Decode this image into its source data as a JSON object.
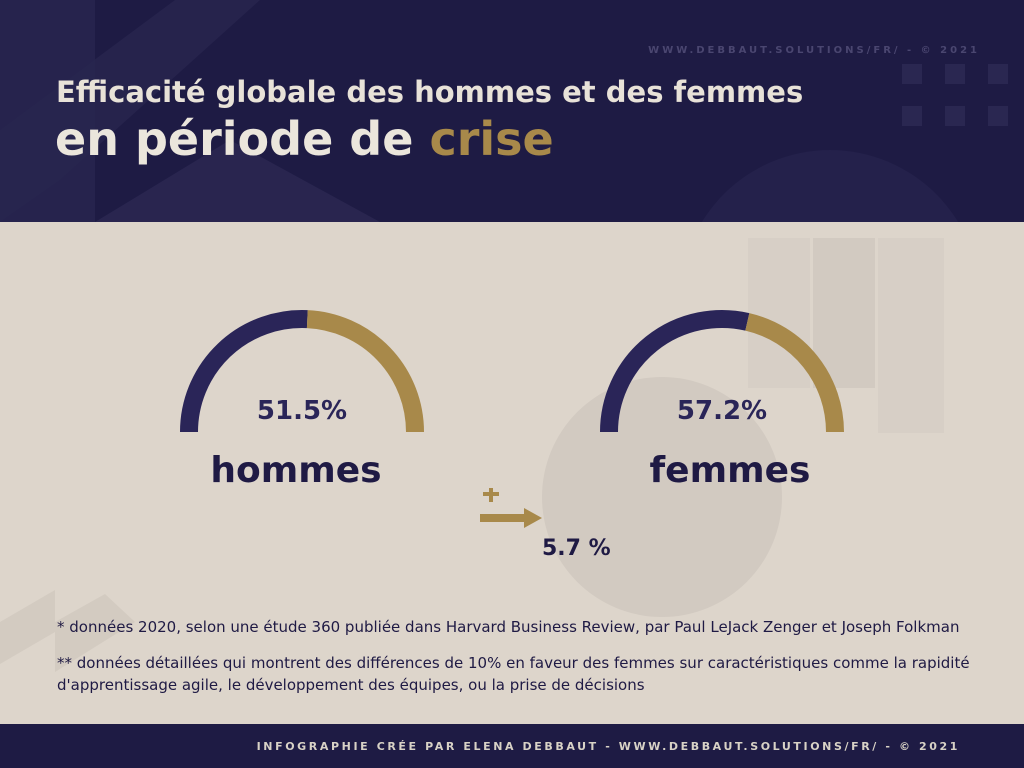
{
  "header": {
    "site_top": "WWW.DEBBAUT.SOLUTIONS/FR/ - © 2021",
    "title_line1": "Efficacité globale des hommes et des femmes",
    "title_line2_prefix": "en période de ",
    "title_line2_accent": "crise"
  },
  "colors": {
    "navy": "#2a2558",
    "gold": "#a8894a",
    "background": "#ddd5cb",
    "header_bg": "#1e1b44"
  },
  "chart_data": {
    "type": "gauge",
    "title": "",
    "series": [
      {
        "label": "hommes",
        "value": 51.5,
        "value_label": "51.5%"
      },
      {
        "label": "femmes",
        "value": 57.2,
        "value_label": "57.2%"
      }
    ],
    "range": [
      0,
      100
    ],
    "difference": {
      "sign": "+",
      "label": "5.7 %",
      "value": 5.7
    }
  },
  "notes": [
    "* données 2020, selon une étude 360 publiée dans Harvard Business Review, par Paul LeJack Zenger et Joseph Folkman",
    "** données détaillées qui montrent des différences de 10% en faveur des femmes sur caractéristiques comme la rapidité d'apprentissage agile, le développement des équipes, ou la prise de décisions"
  ],
  "footer": {
    "text": "INFOGRAPHIE CRÉE PAR ELENA DEBBAUT - WWW.DEBBAUT.SOLUTIONS/FR/ - © 2021"
  }
}
